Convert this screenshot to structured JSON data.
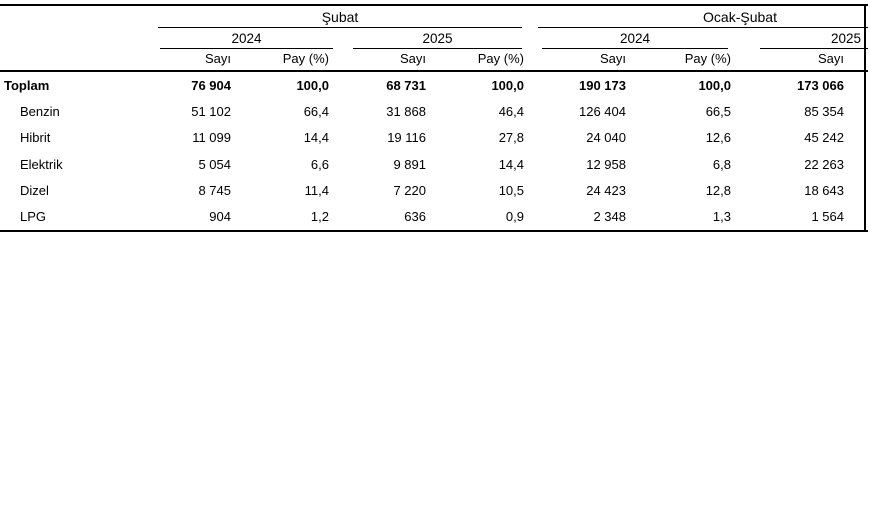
{
  "table": {
    "col_groups": [
      {
        "label": "Şubat"
      },
      {
        "label": "Ocak-Şubat"
      }
    ],
    "years": [
      "2024",
      "2025",
      "2024",
      "2025"
    ],
    "col_headers": [
      "Sayı",
      "Pay (%)",
      "Sayı",
      "Pay (%)",
      "Sayı",
      "Pay (%)",
      "Sayı"
    ],
    "rows": [
      {
        "label": "Toplam",
        "cells": [
          "76 904",
          "100,0",
          "68 731",
          "100,0",
          "190 173",
          "100,0",
          "173 066"
        ]
      },
      {
        "label": "Benzin",
        "cells": [
          "51 102",
          "66,4",
          "31 868",
          "46,4",
          "126 404",
          "66,5",
          "85 354"
        ]
      },
      {
        "label": "Hibrit",
        "cells": [
          "11 099",
          "14,4",
          "19 116",
          "27,8",
          "24 040",
          "12,6",
          "45 242"
        ]
      },
      {
        "label": "Elektrik",
        "cells": [
          "5 054",
          "6,6",
          "9 891",
          "14,4",
          "12 958",
          "6,8",
          "22 263"
        ]
      },
      {
        "label": "Dizel",
        "cells": [
          "8 745",
          "11,4",
          "7 220",
          "10,5",
          "24 423",
          "12,8",
          "18 643"
        ]
      },
      {
        "label": "LPG",
        "cells": [
          "904",
          "1,2",
          "636",
          "0,9",
          "2 348",
          "1,3",
          "1 564"
        ]
      }
    ]
  },
  "chart_data": {
    "type": "table",
    "title": "",
    "column_groups": [
      "Şubat 2024",
      "Şubat 2025",
      "Ocak-Şubat 2024",
      "Ocak-Şubat 2025"
    ],
    "columns": [
      "Şubat 2024 Sayı",
      "Şubat 2024 Pay (%)",
      "Şubat 2025 Sayı",
      "Şubat 2025 Pay (%)",
      "Ocak-Şubat 2024 Sayı",
      "Ocak-Şubat 2024 Pay (%)",
      "Ocak-Şubat 2025 Sayı"
    ],
    "categories": [
      "Toplam",
      "Benzin",
      "Hibrit",
      "Elektrik",
      "Dizel",
      "LPG"
    ],
    "series": [
      {
        "name": "Şubat 2024 Sayı",
        "values": [
          76904,
          51102,
          11099,
          5054,
          8745,
          904
        ]
      },
      {
        "name": "Şubat 2024 Pay (%)",
        "values": [
          100.0,
          66.4,
          14.4,
          6.6,
          11.4,
          1.2
        ]
      },
      {
        "name": "Şubat 2025 Sayı",
        "values": [
          68731,
          31868,
          19116,
          9891,
          7220,
          636
        ]
      },
      {
        "name": "Şubat 2025 Pay (%)",
        "values": [
          100.0,
          46.4,
          27.8,
          14.4,
          10.5,
          0.9
        ]
      },
      {
        "name": "Ocak-Şubat 2024 Sayı",
        "values": [
          190173,
          126404,
          24040,
          12958,
          24423,
          2348
        ]
      },
      {
        "name": "Ocak-Şubat 2024 Pay (%)",
        "values": [
          100.0,
          66.5,
          12.6,
          6.8,
          12.8,
          1.3
        ]
      },
      {
        "name": "Ocak-Şubat 2025 Sayı",
        "values": [
          173066,
          85354,
          45242,
          22263,
          18643,
          1564
        ]
      }
    ]
  },
  "colors": {
    "text": "#000000",
    "background": "#ffffff",
    "rule": "#000000"
  }
}
